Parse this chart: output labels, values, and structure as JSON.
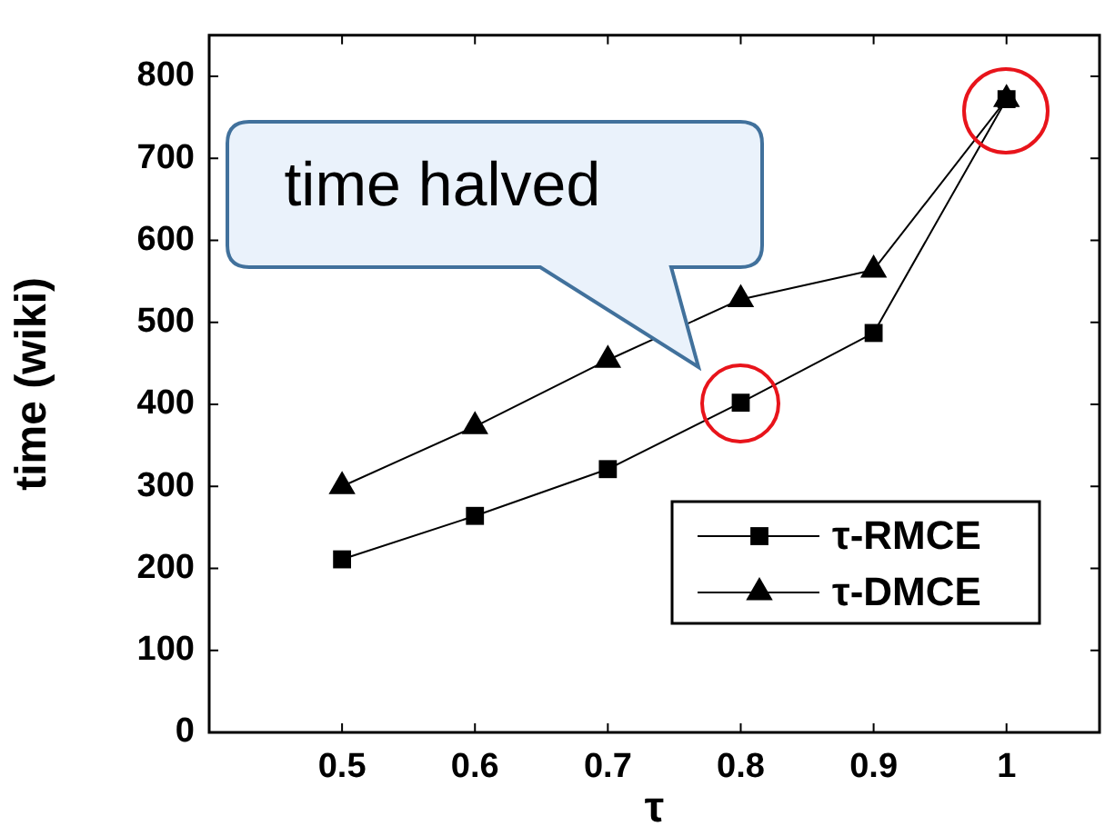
{
  "chart_data": {
    "type": "line",
    "xlabel": "τ",
    "ylabel": "time (wiki)",
    "x": [
      0.5,
      0.6,
      0.7,
      0.8,
      0.9,
      1
    ],
    "series": [
      {
        "name": "τ-RMCE",
        "color": "#000000",
        "marker": "square",
        "values": [
          211,
          264,
          321,
          402,
          487,
          772
        ]
      },
      {
        "name": "τ-DMCE",
        "color": "#000000",
        "marker": "triangle",
        "values": [
          300,
          373,
          454,
          528,
          564,
          772
        ]
      }
    ],
    "xlim": [
      0.4,
      1.07
    ],
    "xticks": [
      0.5,
      0.6,
      0.7,
      0.8,
      0.9,
      1
    ],
    "ylim": [
      0,
      850
    ],
    "yticks": [
      0,
      100,
      200,
      300,
      400,
      500,
      600,
      700,
      800
    ],
    "legend": "bottom right",
    "line_style": "solid",
    "annotations": [
      "time halved"
    ]
  }
}
